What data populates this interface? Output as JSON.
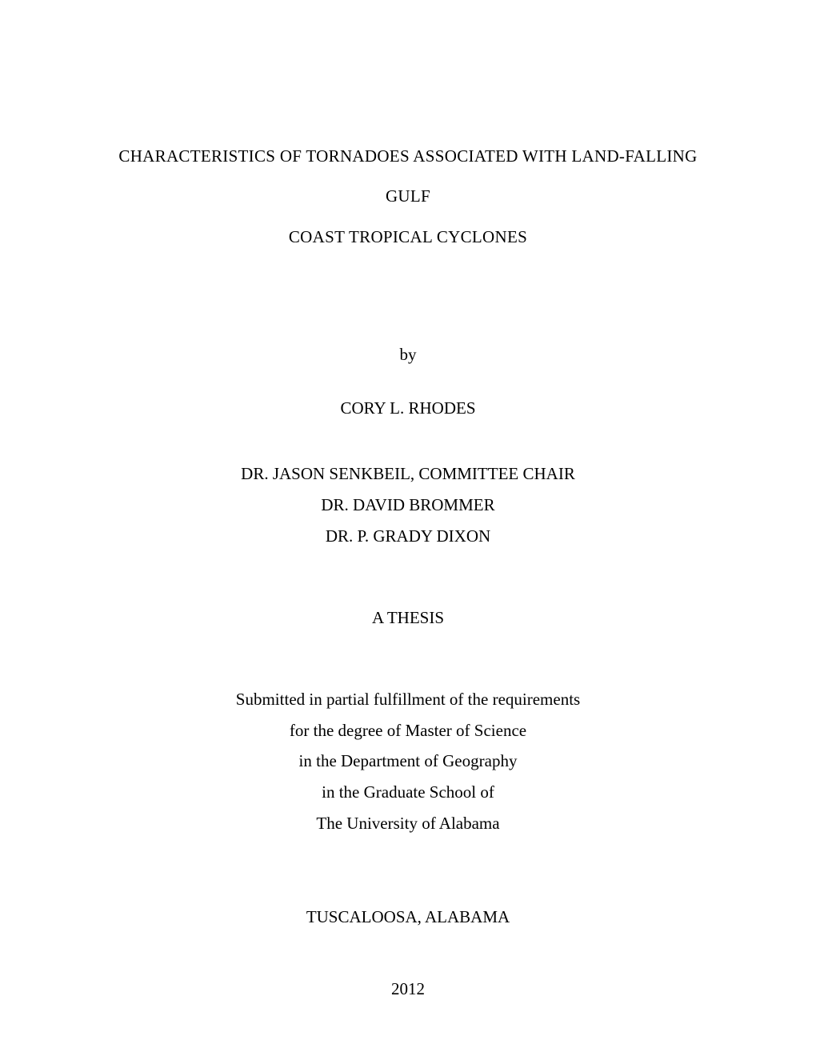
{
  "title": {
    "line1": "CHARACTERISTICS OF TORNADOES ASSOCIATED WITH LAND-FALLING GULF",
    "line2": "COAST TROPICAL CYCLONES"
  },
  "by_word": "by",
  "author": "CORY L. RHODES",
  "committee": {
    "chair": "DR. JASON SENKBEIL, COMMITTEE CHAIR",
    "member1": "DR. DAVID BROMMER",
    "member2": "DR. P. GRADY DIXON"
  },
  "thesis_label": "A THESIS",
  "submission": {
    "line1": "Submitted in partial fulfillment of the requirements",
    "line2": "for the degree of Master of Science",
    "line3": "in the Department of Geography",
    "line4": "in the Graduate School of",
    "line5": "The University of Alabama"
  },
  "location": "TUSCALOOSA, ALABAMA",
  "year": "2012",
  "styles": {
    "background_color": "#ffffff",
    "text_color": "#000000",
    "font_family": "Times New Roman",
    "base_font_size": 21
  }
}
